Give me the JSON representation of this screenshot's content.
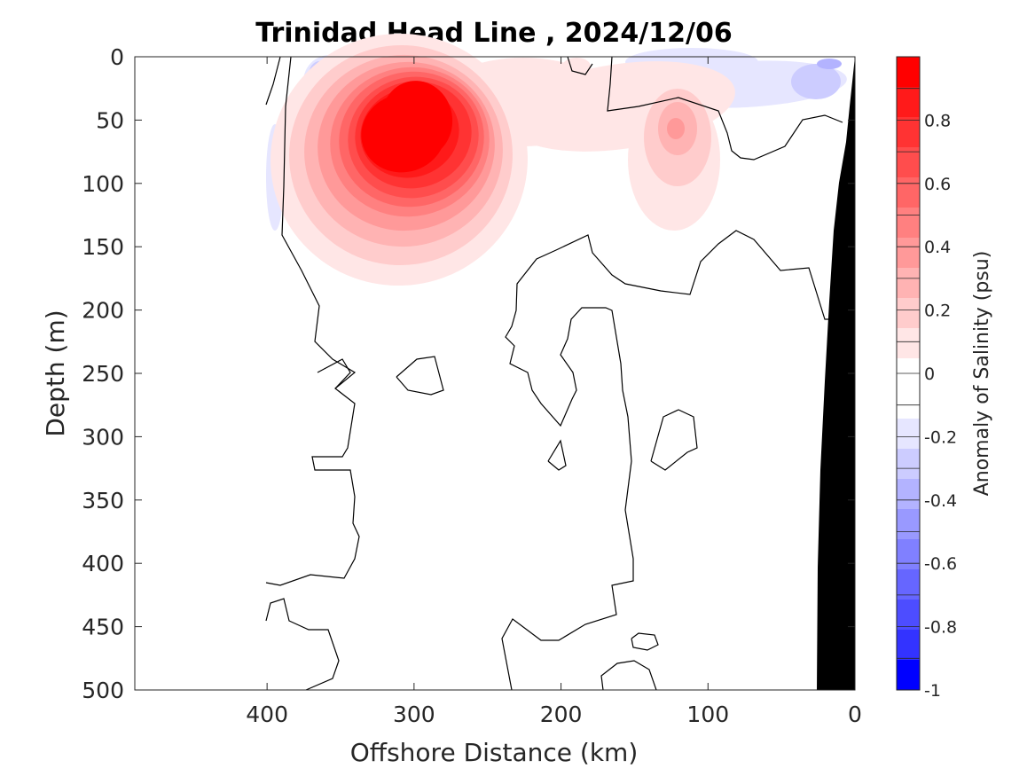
{
  "chart_data": {
    "type": "heatmap",
    "title": "Trinidad Head Line , 2024/12/06",
    "xlabel": "Offshore Distance (km)",
    "ylabel": "Depth (m)",
    "colorbar_label": "Anomaly of Salinity (psu)",
    "xlim": [
      490,
      0
    ],
    "ylim": [
      500,
      0
    ],
    "x_reversed": true,
    "y_reversed": true,
    "x_ticks": [
      400,
      300,
      200,
      100,
      0
    ],
    "x_tick_labels": [
      "400",
      "300",
      "200",
      "100",
      "0"
    ],
    "y_ticks": [
      0,
      50,
      100,
      150,
      200,
      250,
      300,
      350,
      400,
      450,
      500
    ],
    "y_tick_labels": [
      "0",
      "50",
      "100",
      "150",
      "200",
      "250",
      "300",
      "350",
      "400",
      "450",
      "500"
    ],
    "colorbar": {
      "range": [
        -1,
        1
      ],
      "levels": [
        -1.0,
        -0.9,
        -0.8,
        -0.7,
        -0.6,
        -0.5,
        -0.4,
        -0.3,
        -0.2,
        -0.1,
        0.0,
        0.1,
        0.2,
        0.3,
        0.4,
        0.5,
        0.6,
        0.7,
        0.8,
        0.9,
        1.0
      ],
      "tick_values": [
        0.8,
        0.6,
        0.4,
        0.2,
        0,
        -0.2,
        -0.4,
        -0.6,
        -0.8,
        -1
      ],
      "tick_labels": [
        "0.8",
        "0.6",
        "0.4",
        "0.2",
        "0",
        "-0.2",
        "-0.4",
        "-0.6",
        "-0.8",
        "-1"
      ],
      "colors_high_to_low": [
        "#ff0000",
        "#ff1a1a",
        "#ff3333",
        "#ff4d4d",
        "#ff6666",
        "#ff8080",
        "#ff9999",
        "#ffb3b3",
        "#ffcccc",
        "#ffe6e6",
        "#ffffff",
        "#ffffff",
        "#e6e6ff",
        "#ccccff",
        "#b3b3ff",
        "#9999ff",
        "#8080ff",
        "#6666ff",
        "#4d4dff",
        "#3333ff",
        "#0000ff"
      ]
    },
    "anomaly_features": [
      {
        "kind": "salty-core",
        "center_km": 315,
        "center_depth_m": 85,
        "peak_psu": 0.9
      },
      {
        "kind": "salty-lens",
        "center_km": 120,
        "center_depth_m": 65,
        "peak_psu": 0.4
      },
      {
        "kind": "fresh-surface",
        "center_km": 360,
        "center_depth_m": 20,
        "peak_psu": -0.2
      },
      {
        "kind": "fresh-surface",
        "center_km": 80,
        "center_depth_m": 20,
        "peak_psu": -0.2
      }
    ],
    "zero_contour": true,
    "bathymetry_fill": "#000000"
  }
}
